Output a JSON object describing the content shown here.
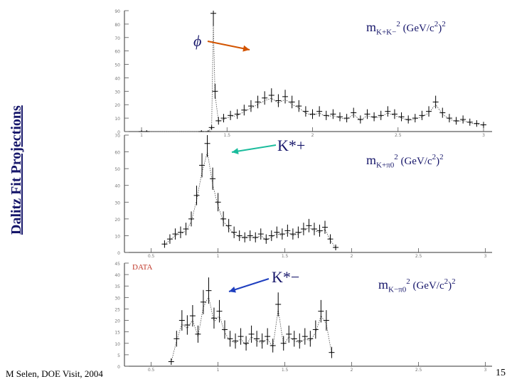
{
  "page": {
    "side_title": "Dalitz Fit Projections",
    "footer": "M Selen, DOE Visit, 2004",
    "page_number": "15"
  },
  "panels": {
    "top": {
      "axis_label": {
        "m": "m",
        "sub": "K+K−",
        "pow": "2",
        "unit": " (GeV/c",
        "unit_sup": "2",
        "unit_end": ")",
        "unit_pow": "2"
      },
      "annotation": "ϕ"
    },
    "middle": {
      "axis_label": {
        "m": "m",
        "sub": "K+π0",
        "pow": "2",
        "unit": " (GeV/c",
        "unit_sup": "2",
        "unit_end": ")",
        "unit_pow": "2"
      },
      "annotation": "K*+"
    },
    "bottom": {
      "axis_label": {
        "m": "m",
        "sub": "K−π0",
        "pow": "2",
        "unit": " (GeV/c",
        "unit_sup": "2",
        "unit_end": ")",
        "unit_pow": "2"
      },
      "annotation": "K*−",
      "data_tag": "DATA"
    }
  },
  "colors": {
    "title": "#16166a",
    "phi_arrow": "#d35400",
    "kstar_plus_arrow": "#1abc9c",
    "kstar_minus_arrow": "#1f3fbf",
    "data_tag": "#c0392b",
    "histogram": "#000000"
  },
  "chart_data": [
    {
      "type": "scatter",
      "title": "",
      "xlabel": "m_{K+K−}^2 (GeV/c^2)^2",
      "ylabel": "",
      "ylim": [
        0,
        90
      ],
      "y_ticks": [
        "0",
        "10",
        "20",
        "30",
        "40",
        "50",
        "60",
        "70",
        "80",
        "90"
      ],
      "x_ticks": [
        "1",
        "1.5",
        "2",
        "2.5",
        "3"
      ],
      "xlim": [
        0.9,
        3.05
      ],
      "points": [
        [
          1.0,
          0
        ],
        [
          1.03,
          0
        ],
        [
          1.35,
          0
        ],
        [
          1.39,
          0
        ],
        [
          1.41,
          3
        ],
        [
          1.42,
          88
        ],
        [
          1.43,
          30
        ],
        [
          1.45,
          8
        ],
        [
          1.48,
          10
        ],
        [
          1.52,
          12
        ],
        [
          1.56,
          13
        ],
        [
          1.6,
          16
        ],
        [
          1.64,
          19
        ],
        [
          1.68,
          22
        ],
        [
          1.72,
          25
        ],
        [
          1.76,
          27
        ],
        [
          1.8,
          23
        ],
        [
          1.84,
          26
        ],
        [
          1.88,
          22
        ],
        [
          1.92,
          19
        ],
        [
          1.96,
          15
        ],
        [
          2.0,
          13
        ],
        [
          2.04,
          15
        ],
        [
          2.08,
          12
        ],
        [
          2.12,
          13
        ],
        [
          2.16,
          11
        ],
        [
          2.2,
          10
        ],
        [
          2.24,
          14
        ],
        [
          2.28,
          9
        ],
        [
          2.32,
          13
        ],
        [
          2.36,
          11
        ],
        [
          2.4,
          12
        ],
        [
          2.44,
          15
        ],
        [
          2.48,
          13
        ],
        [
          2.52,
          11
        ],
        [
          2.56,
          9
        ],
        [
          2.6,
          10
        ],
        [
          2.64,
          12
        ],
        [
          2.68,
          15
        ],
        [
          2.72,
          22
        ],
        [
          2.76,
          14
        ],
        [
          2.8,
          10
        ],
        [
          2.84,
          8
        ],
        [
          2.88,
          9
        ],
        [
          2.92,
          7
        ],
        [
          2.96,
          6
        ],
        [
          3.0,
          5
        ]
      ]
    },
    {
      "type": "scatter",
      "title": "",
      "xlabel": "m_{K+π0}^2 (GeV/c^2)^2",
      "ylabel": "",
      "ylim": [
        0,
        70
      ],
      "y_ticks": [
        "0",
        "10",
        "20",
        "30",
        "40",
        "50",
        "60",
        "70"
      ],
      "x_ticks": [
        "0.5",
        "1",
        "1.5",
        "2",
        "2.5",
        "3"
      ],
      "xlim": [
        0.3,
        3.05
      ],
      "points": [
        [
          0.6,
          5
        ],
        [
          0.64,
          8
        ],
        [
          0.68,
          11
        ],
        [
          0.72,
          12
        ],
        [
          0.76,
          14
        ],
        [
          0.8,
          20
        ],
        [
          0.84,
          34
        ],
        [
          0.88,
          52
        ],
        [
          0.92,
          65
        ],
        [
          0.96,
          44
        ],
        [
          1.0,
          30
        ],
        [
          1.04,
          20
        ],
        [
          1.08,
          16
        ],
        [
          1.12,
          12
        ],
        [
          1.16,
          10
        ],
        [
          1.2,
          9
        ],
        [
          1.24,
          10
        ],
        [
          1.28,
          9
        ],
        [
          1.32,
          11
        ],
        [
          1.36,
          8
        ],
        [
          1.4,
          10
        ],
        [
          1.44,
          12
        ],
        [
          1.48,
          11
        ],
        [
          1.52,
          13
        ],
        [
          1.56,
          11
        ],
        [
          1.6,
          12
        ],
        [
          1.64,
          14
        ],
        [
          1.68,
          16
        ],
        [
          1.72,
          14
        ],
        [
          1.76,
          13
        ],
        [
          1.8,
          15
        ],
        [
          1.84,
          8
        ],
        [
          1.88,
          3
        ]
      ]
    },
    {
      "type": "scatter",
      "title": "",
      "xlabel": "m_{K−π0}^2 (GeV/c^2)^2",
      "ylabel": "",
      "ylim": [
        0,
        45
      ],
      "y_ticks": [
        "0",
        "5",
        "10",
        "15",
        "20",
        "25",
        "30",
        "35",
        "40",
        "45"
      ],
      "x_ticks": [
        "0.5",
        "1",
        "1.5",
        "2",
        "2.5",
        "3"
      ],
      "xlim": [
        0.3,
        3.05
      ],
      "points": [
        [
          0.65,
          2
        ],
        [
          0.69,
          12
        ],
        [
          0.73,
          20
        ],
        [
          0.77,
          18
        ],
        [
          0.81,
          22
        ],
        [
          0.85,
          14
        ],
        [
          0.89,
          28
        ],
        [
          0.93,
          33
        ],
        [
          0.97,
          21
        ],
        [
          1.01,
          24
        ],
        [
          1.05,
          16
        ],
        [
          1.09,
          12
        ],
        [
          1.13,
          11
        ],
        [
          1.17,
          13
        ],
        [
          1.21,
          10
        ],
        [
          1.25,
          14
        ],
        [
          1.29,
          12
        ],
        [
          1.33,
          11
        ],
        [
          1.37,
          13
        ],
        [
          1.41,
          9
        ],
        [
          1.45,
          27
        ],
        [
          1.49,
          10
        ],
        [
          1.53,
          14
        ],
        [
          1.57,
          12
        ],
        [
          1.61,
          11
        ],
        [
          1.65,
          13
        ],
        [
          1.69,
          12
        ],
        [
          1.73,
          16
        ],
        [
          1.77,
          24
        ],
        [
          1.81,
          20
        ],
        [
          1.85,
          6
        ]
      ]
    }
  ]
}
